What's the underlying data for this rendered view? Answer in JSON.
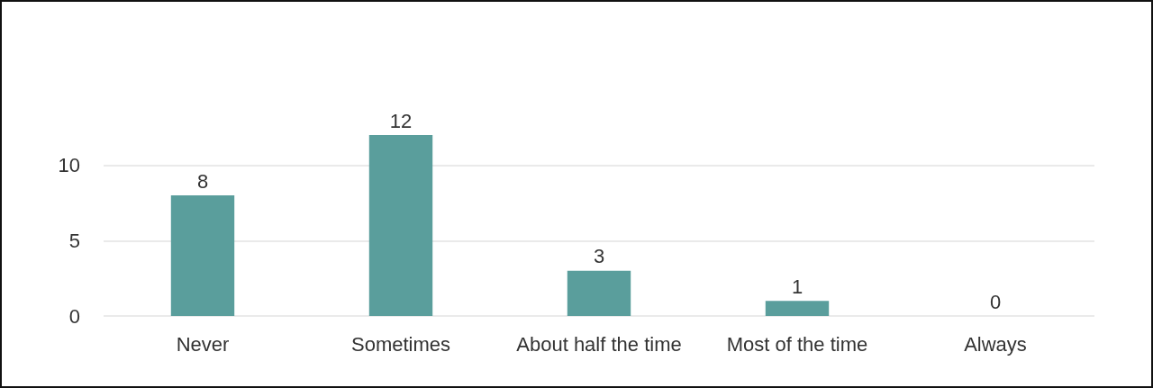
{
  "chart_data": {
    "type": "bar",
    "categories": [
      "Never",
      "Sometimes",
      "About half the time",
      "Most of the time",
      "Always"
    ],
    "values": [
      8,
      12,
      3,
      1,
      0
    ],
    "color": "#5a9e9c",
    "ylim": [
      0,
      12
    ],
    "yticks": [
      0,
      5,
      10
    ],
    "grid": "y",
    "data_labels": true
  }
}
